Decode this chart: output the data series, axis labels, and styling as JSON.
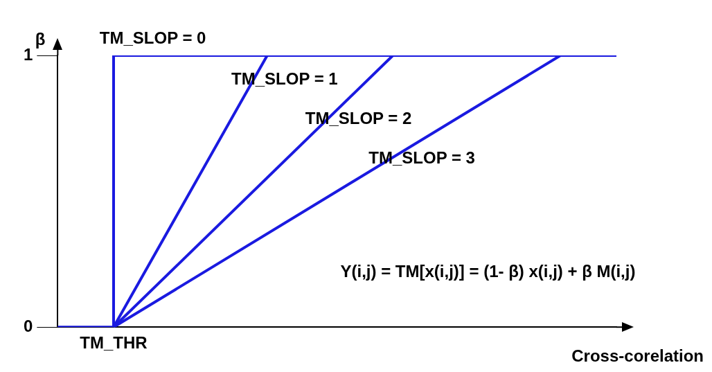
{
  "chart_data": {
    "type": "line",
    "xlabel": "Cross-corelation",
    "ylabel": "β",
    "ylim": [
      0,
      1
    ],
    "yticks": [
      0,
      1
    ],
    "legend": false,
    "marker": "none",
    "line_style": "solid",
    "categories": [
      null,
      null,
      null,
      null,
      "TM_THR",
      null,
      null,
      null,
      null,
      null,
      null,
      null,
      null,
      null,
      null,
      null,
      null,
      null,
      null,
      null,
      null,
      null,
      null,
      null,
      null,
      null,
      null,
      null,
      null,
      null,
      null,
      null,
      null,
      null,
      null,
      null,
      null,
      null,
      null,
      null,
      null
    ],
    "series": [
      {
        "name": "TM_SLOP = 0",
        "type": "step",
        "color": "#1a1ae0",
        "values": [
          0,
          0,
          0,
          0,
          1,
          1,
          1,
          1,
          1,
          1,
          1,
          1,
          1,
          1,
          1,
          1,
          1,
          1,
          1,
          1,
          1,
          1,
          1,
          1,
          1,
          1,
          1,
          1,
          1,
          1,
          1,
          1,
          1,
          1,
          1,
          1,
          1,
          1,
          1,
          1,
          1
        ]
      },
      {
        "name": "TM_SLOP = 1",
        "color": "#1a1ae0",
        "values": [
          null,
          null,
          null,
          null,
          0,
          null,
          null,
          null,
          null,
          null,
          null,
          null,
          null,
          null,
          null,
          1,
          null,
          null,
          null,
          null,
          null,
          null,
          null,
          null,
          null,
          null,
          null,
          null,
          null,
          null,
          null,
          null,
          null,
          null,
          null,
          null,
          null,
          null,
          null,
          null,
          1
        ]
      },
      {
        "name": "TM_SLOP = 2",
        "color": "#1a1ae0",
        "values": [
          null,
          null,
          null,
          null,
          0,
          null,
          null,
          null,
          null,
          null,
          null,
          null,
          null,
          null,
          null,
          null,
          null,
          null,
          null,
          null,
          null,
          null,
          null,
          null,
          1,
          null,
          null,
          null,
          null,
          null,
          null,
          null,
          null,
          null,
          null,
          null,
          null,
          null,
          null,
          null,
          1
        ]
      },
      {
        "name": "TM_SLOP = 3",
        "color": "#1a1ae0",
        "values": [
          null,
          null,
          null,
          null,
          0,
          null,
          null,
          null,
          null,
          null,
          null,
          null,
          null,
          null,
          null,
          null,
          null,
          null,
          null,
          null,
          null,
          null,
          null,
          null,
          null,
          null,
          null,
          null,
          null,
          null,
          null,
          null,
          null,
          null,
          null,
          null,
          1,
          null,
          null,
          null,
          1
        ]
      }
    ],
    "annotations": [
      "Y(i,j) = TM[x(i,j)] = (1- β) x(i,j) + β M(i,j)"
    ]
  }
}
